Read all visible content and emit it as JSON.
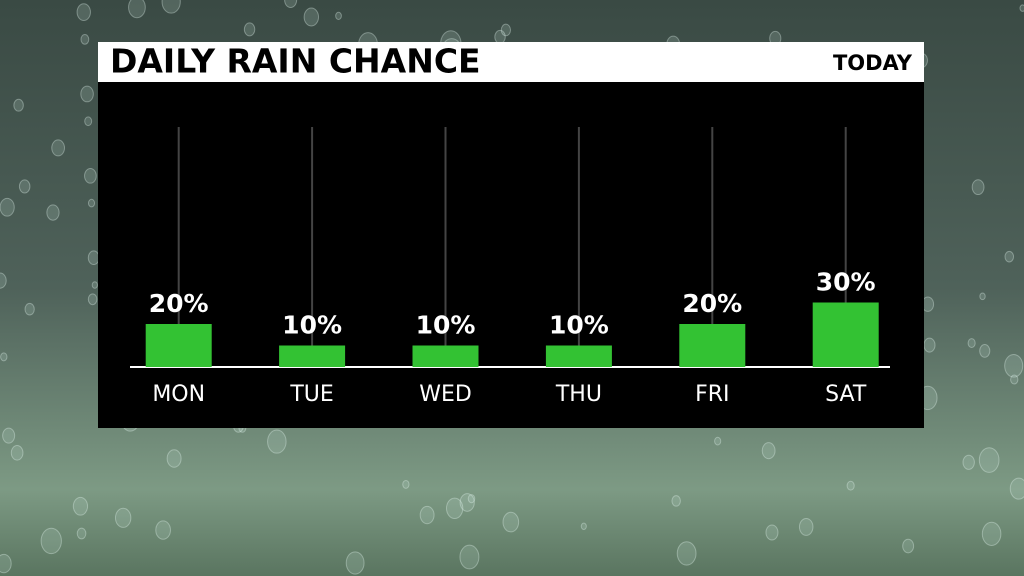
{
  "chart_data": {
    "type": "bar",
    "title": "DAILY RAIN CHANCE",
    "subtitle": "TODAY",
    "categories": [
      "MON",
      "TUE",
      "WED",
      "THU",
      "FRI",
      "SAT"
    ],
    "values": [
      20,
      10,
      10,
      10,
      20,
      30
    ],
    "value_labels": [
      "20%",
      "10%",
      "10%",
      "10%",
      "20%",
      "30%"
    ],
    "color": "#33c233"
  }
}
